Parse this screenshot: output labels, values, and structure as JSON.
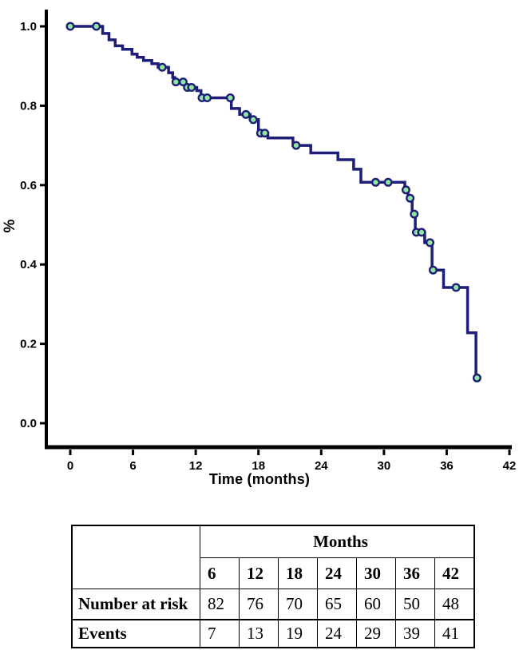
{
  "chart_data": {
    "type": "line",
    "subtype": "kaplan-meier-step",
    "title": "",
    "xlabel": "Time (months)",
    "ylabel": "%",
    "xlim": [
      0,
      42
    ],
    "ylim": [
      0.0,
      1.0
    ],
    "xticks": [
      0,
      6,
      12,
      18,
      24,
      30,
      36,
      42
    ],
    "yticks": [
      "0.0",
      "0.2",
      "0.4",
      "0.6",
      "0.8",
      "1.0"
    ],
    "grid": false,
    "legend": "none",
    "line_color": "#1e1e78",
    "marker_fill": "#90e79f",
    "axis_color": "#000000",
    "steps": [
      [
        0.0,
        1.0
      ],
      [
        2.5,
        1.0
      ],
      [
        3.1,
        0.982
      ],
      [
        3.7,
        0.966
      ],
      [
        4.3,
        0.951
      ],
      [
        5.0,
        0.942
      ],
      [
        5.9,
        0.93
      ],
      [
        6.4,
        0.922
      ],
      [
        7.0,
        0.914
      ],
      [
        7.8,
        0.906
      ],
      [
        8.4,
        0.897
      ],
      [
        9.4,
        0.883
      ],
      [
        9.8,
        0.871
      ],
      [
        10.0,
        0.86
      ],
      [
        11.0,
        0.846
      ],
      [
        12.1,
        0.838
      ],
      [
        12.5,
        0.82
      ],
      [
        15.4,
        0.793
      ],
      [
        16.2,
        0.778
      ],
      [
        17.2,
        0.765
      ],
      [
        18.0,
        0.731
      ],
      [
        18.9,
        0.719
      ],
      [
        21.3,
        0.7
      ],
      [
        23.0,
        0.681
      ],
      [
        25.6,
        0.664
      ],
      [
        27.1,
        0.64
      ],
      [
        27.8,
        0.607
      ],
      [
        32.0,
        0.588
      ],
      [
        32.3,
        0.567
      ],
      [
        32.7,
        0.527
      ],
      [
        33.0,
        0.481
      ],
      [
        33.9,
        0.455
      ],
      [
        34.6,
        0.386
      ],
      [
        35.7,
        0.342
      ],
      [
        38.0,
        0.228
      ],
      [
        38.8,
        0.114
      ],
      [
        38.9,
        0.114
      ]
    ],
    "censor_times": [
      0.0,
      2.5,
      8.8,
      10.1,
      10.8,
      11.2,
      11.6,
      12.6,
      13.1,
      15.3,
      16.8,
      17.5,
      18.2,
      18.6,
      21.6,
      29.2,
      30.4,
      32.1,
      32.5,
      32.9,
      33.1,
      33.6,
      34.4,
      34.7,
      36.9,
      38.9
    ]
  },
  "risk_table": {
    "header": "Months",
    "columns": [
      "6",
      "12",
      "18",
      "24",
      "30",
      "36",
      "42"
    ],
    "rows": [
      {
        "label": "Number at risk",
        "values": [
          "82",
          "76",
          "70",
          "65",
          "60",
          "50",
          "48"
        ]
      },
      {
        "label": "Events",
        "values": [
          "7",
          "13",
          "19",
          "24",
          "29",
          "39",
          "41"
        ]
      }
    ]
  }
}
